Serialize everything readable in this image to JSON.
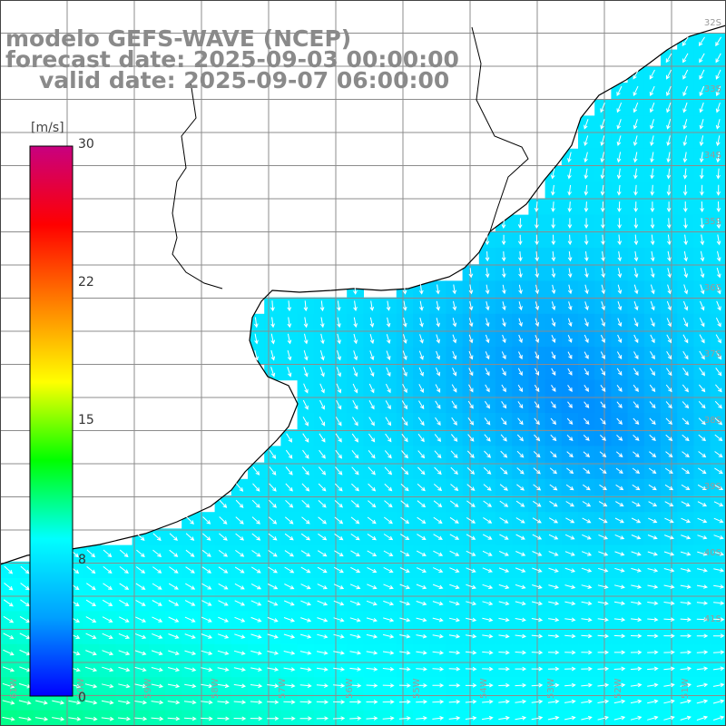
{
  "title": {
    "line1": "modelo GEFS-WAVE (NCEP)",
    "line2": "forecast date: 2025-09-03 00:00:00",
    "line3": "valid date: 2025-09-07 06:00:00"
  },
  "colorbar": {
    "unit": "[m/s]",
    "min": 0,
    "max": 30,
    "ticks": [
      "30",
      "22",
      "15",
      "8",
      "0"
    ],
    "tick_values": [
      30,
      22,
      15,
      8,
      0
    ],
    "stops": [
      "#0000ff",
      "#00a0ff",
      "#00ffff",
      "#00ff00",
      "#ffff00",
      "#ff8000",
      "#ff0000",
      "#c80080"
    ]
  },
  "map": {
    "latitude_labels": [
      "32S",
      "33S",
      "34S",
      "35S",
      "36S",
      "37S",
      "38S",
      "39S",
      "40S",
      "41S"
    ],
    "longitude_labels": [
      "61W",
      "60W",
      "59W",
      "58W",
      "57W",
      "56W",
      "55W",
      "54W",
      "53W",
      "52W",
      "51W"
    ],
    "land_color": "#ffffff",
    "coast_color": "#000000",
    "grid_color": "#8c8c8c",
    "arrow_color": "#ffffff"
  }
}
